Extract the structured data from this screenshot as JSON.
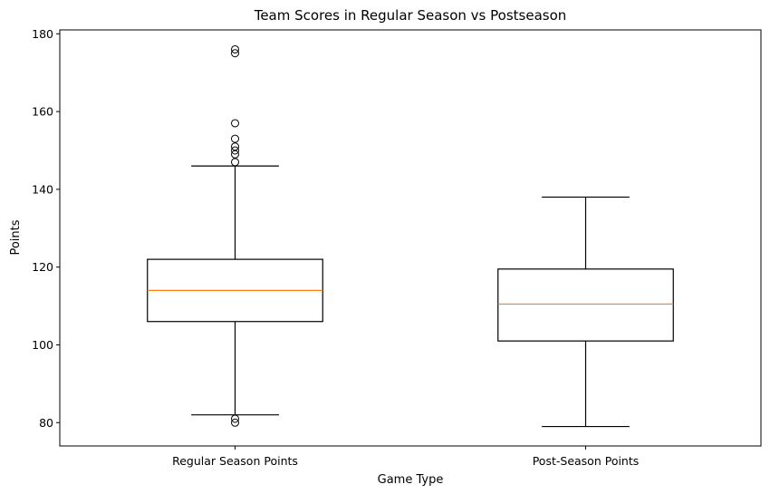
{
  "chart_data": {
    "type": "box",
    "title": "Team Scores in Regular Season vs Postseason",
    "xlabel": "Game Type",
    "ylabel": "Points",
    "ylim": [
      74,
      181
    ],
    "yticks": [
      80,
      100,
      120,
      140,
      160,
      180
    ],
    "grid": false,
    "categories": [
      "Regular Season Points",
      "Post-Season Points"
    ],
    "series": [
      {
        "category": "Regular Season Points",
        "whisker_low": 82,
        "q1": 106,
        "median": 114,
        "q3": 122,
        "whisker_high": 146,
        "outliers": [
          176,
          175,
          157,
          153,
          151,
          150,
          149,
          147,
          81,
          80
        ]
      },
      {
        "category": "Post-Season Points",
        "whisker_low": 79,
        "q1": 101,
        "median": 110.5,
        "q3": 119.5,
        "whisker_high": 138,
        "outliers": []
      }
    ],
    "colors": {
      "box": "#000000",
      "median": "#ff7f0e",
      "outlier": "#000000"
    }
  }
}
